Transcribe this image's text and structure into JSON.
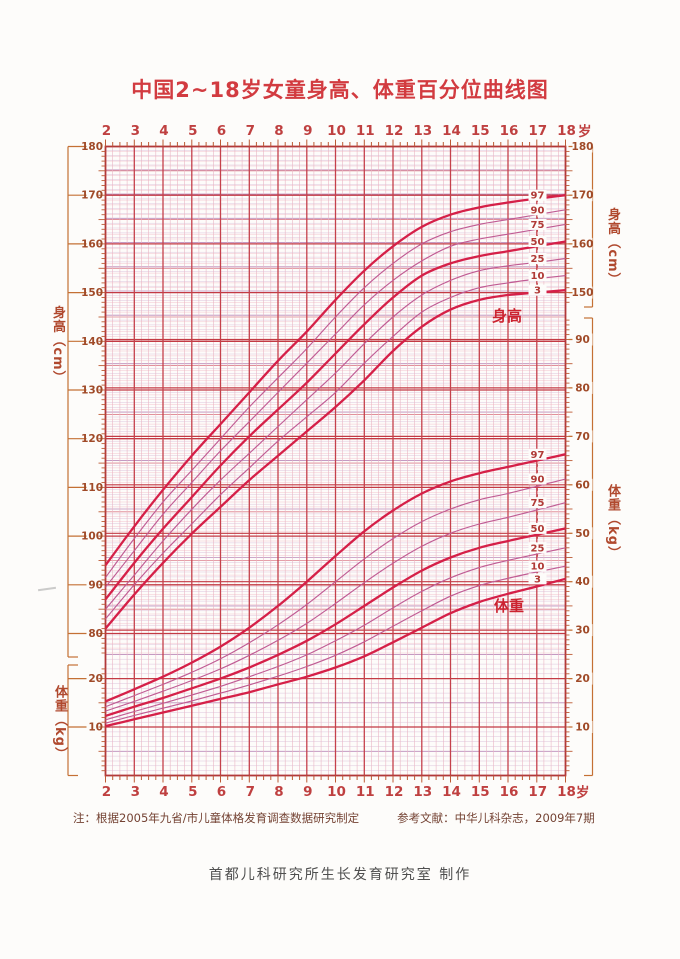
{
  "title": "中国2~18岁女童身高、体重百分位曲线图",
  "notes": {
    "source": "注：根据2005年九省/市儿童体格发育调查数据研究制定",
    "reference": "参考文献：中华儿科杂志，2009年7期"
  },
  "footer": "首都儿科研究所生长发育研究室  制作",
  "axes": {
    "age_unit": "岁",
    "age_ticks": [
      2,
      3,
      4,
      5,
      6,
      7,
      8,
      9,
      10,
      11,
      12,
      13,
      14,
      15,
      16,
      17,
      18
    ],
    "left_height_label": "身高（cm）",
    "left_height_ticks": [
      180,
      170,
      160,
      150,
      140,
      130,
      120,
      110,
      100,
      90,
      80
    ],
    "left_weight_label": "体重（kg）",
    "left_weight_ticks": [
      20,
      10
    ],
    "right_height_label": "身高（cm）",
    "right_height_ticks": [
      180,
      170,
      160,
      150
    ],
    "right_weight_label": "体重（kg）",
    "right_weight_ticks": [
      90,
      80,
      70,
      60,
      50,
      40,
      30,
      20,
      10
    ]
  },
  "chart_data": {
    "type": "line",
    "title": "中国2~18岁女童身高、体重百分位曲线图",
    "xlabel": "岁",
    "x": [
      2,
      3,
      4,
      5,
      6,
      7,
      8,
      9,
      10,
      11,
      12,
      13,
      14,
      15,
      16,
      17,
      18
    ],
    "x_range": [
      2,
      18
    ],
    "grid": "on",
    "height": {
      "group_label": "身高",
      "unit": "cm",
      "axis_range": [
        75,
        180
      ],
      "series": [
        {
          "name": "97",
          "bold": true,
          "values": [
            94,
            102,
            109.5,
            116.5,
            123,
            129.5,
            136,
            142,
            148.5,
            154.5,
            159.5,
            163.5,
            166,
            167.5,
            168.5,
            169.3,
            170
          ]
        },
        {
          "name": "90",
          "bold": false,
          "values": [
            91.5,
            99.5,
            107,
            113.5,
            120,
            126.5,
            132.5,
            138.5,
            145,
            151,
            156,
            160,
            162.5,
            164,
            165,
            166,
            167
          ]
        },
        {
          "name": "75",
          "bold": false,
          "values": [
            89.5,
            97,
            104.5,
            111,
            117.5,
            123.5,
            129.5,
            135.5,
            141.5,
            147.5,
            152.5,
            156.5,
            159.5,
            161,
            162,
            163,
            164
          ]
        },
        {
          "name": "50",
          "bold": true,
          "values": [
            87,
            94.5,
            101.5,
            108,
            114.5,
            120.5,
            126,
            131.5,
            137.5,
            143.5,
            149,
            153.5,
            156,
            157.5,
            158.5,
            159.5,
            160.5
          ]
        },
        {
          "name": "25",
          "bold": false,
          "values": [
            85,
            92,
            99,
            105.5,
            111.5,
            117,
            122.5,
            128,
            133.5,
            139.5,
            145,
            149.5,
            152.5,
            154.5,
            155.5,
            156.2,
            157
          ]
        },
        {
          "name": "10",
          "bold": false,
          "values": [
            83,
            90,
            96.5,
            102.5,
            108.5,
            114,
            119.5,
            124.5,
            129.5,
            135.5,
            141,
            146,
            149,
            151,
            152,
            152.8,
            153.5
          ]
        },
        {
          "name": "3",
          "bold": true,
          "values": [
            81,
            88,
            94.5,
            100.5,
            106,
            111.5,
            116.5,
            121.5,
            126.5,
            132,
            138,
            143,
            146.5,
            148.5,
            149.5,
            150,
            150.5
          ]
        }
      ]
    },
    "weight": {
      "group_label": "体重",
      "unit": "kg",
      "axis_range": [
        0,
        95
      ],
      "series": [
        {
          "name": "97",
          "bold": true,
          "values": [
            15.3,
            17.8,
            20.4,
            23.3,
            26.6,
            30.5,
            35,
            40,
            45.3,
            50.4,
            54.7,
            58.2,
            60.7,
            62.4,
            63.7,
            65,
            66.3
          ]
        },
        {
          "name": "90",
          "bold": false,
          "values": [
            14.2,
            16.5,
            18.8,
            21.3,
            24.1,
            27.4,
            31.1,
            35.3,
            40,
            44.7,
            48.9,
            52.4,
            55,
            56.9,
            58.2,
            59.7,
            61.2
          ]
        },
        {
          "name": "75",
          "bold": false,
          "values": [
            13.3,
            15.3,
            17.4,
            19.6,
            22,
            24.8,
            27.9,
            31.4,
            35.5,
            39.8,
            43.8,
            47.3,
            50,
            51.9,
            53.3,
            54.8,
            56.3
          ]
        },
        {
          "name": "50",
          "bold": true,
          "values": [
            12.3,
            14.2,
            16,
            18,
            20,
            22.3,
            24.9,
            27.8,
            31.2,
            35,
            38.8,
            42.3,
            45,
            47,
            48.4,
            49.7,
            51
          ]
        },
        {
          "name": "25",
          "bold": false,
          "values": [
            11.5,
            13.2,
            14.9,
            16.6,
            18.4,
            20.4,
            22.5,
            24.9,
            27.8,
            31,
            34.6,
            38,
            40.8,
            42.9,
            44.4,
            45.7,
            47
          ]
        },
        {
          "name": "10",
          "bold": false,
          "values": [
            10.8,
            12.4,
            13.9,
            15.4,
            17,
            18.7,
            20.5,
            22.5,
            24.8,
            27.6,
            30.8,
            34,
            37,
            39.2,
            40.7,
            42,
            43.2
          ]
        },
        {
          "name": "3",
          "bold": true,
          "values": [
            10.2,
            11.6,
            13,
            14.4,
            15.8,
            17.2,
            18.8,
            20.4,
            22.3,
            24.6,
            27.5,
            30.5,
            33.5,
            35.8,
            37.5,
            39,
            40.6
          ]
        }
      ]
    },
    "percentile_labels": [
      "97",
      "90",
      "75",
      "50",
      "25",
      "10",
      "3"
    ],
    "colors": {
      "title": "#d23b40",
      "bold_curve": "#d52048",
      "thin_curve": "#c05c94",
      "grid_strong": "#c33a44",
      "grid_cm_medium": "#dd808c",
      "grid_cm_light": "#f2c3cd",
      "grid_kg_medium": "#bb8cba",
      "grid_kg_light": "#ddc4dc",
      "grid_year": "#c5414b",
      "grid_quarter": "#eab6c4",
      "border": "#b2383a",
      "tick": "#bc5a34",
      "bracket": "#c47034",
      "tick_label": "#a04a28",
      "age_label": "#bf4040",
      "percentile_label": "#b03a36",
      "group_label": "#cc2330"
    }
  }
}
